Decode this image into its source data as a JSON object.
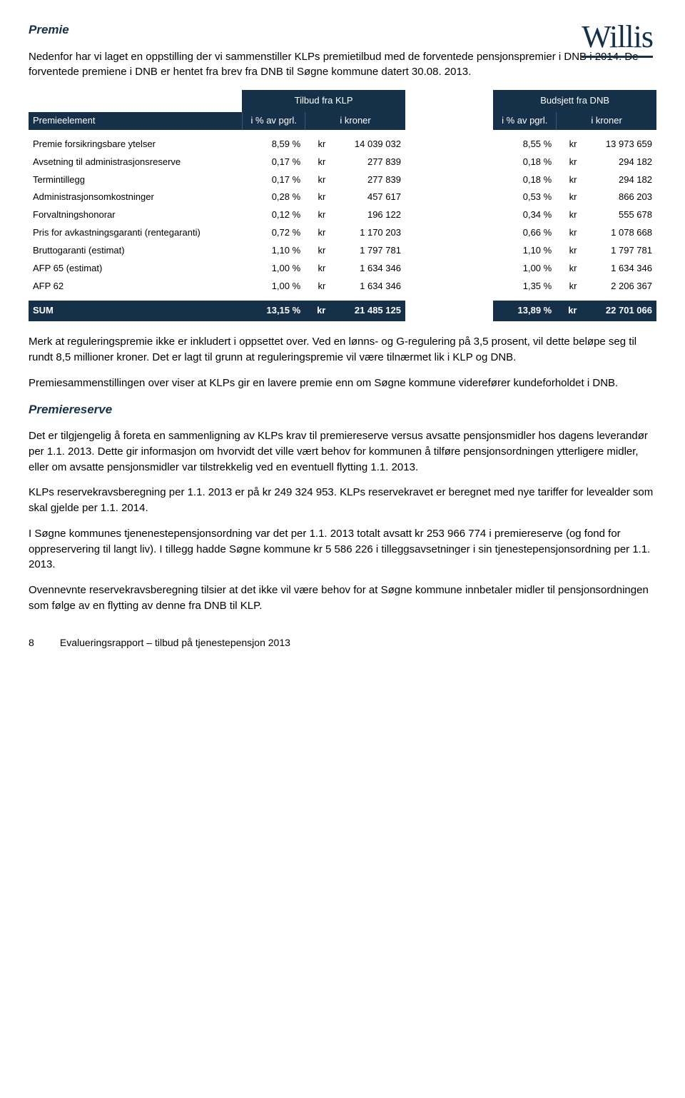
{
  "logo": "Willis",
  "section1_title": "Premie",
  "p1": "Nedenfor har vi laget en oppstilling der vi sammenstiller KLPs premietilbud med de forventede pensjonspremier i DNB i 2014. De forventede premiene i DNB er hentet fra brev fra DNB til Søgne kommune datert 30.08. 2013.",
  "table": {
    "group1": "Tilbud fra KLP",
    "group2": "Budsjett fra DNB",
    "col_label": "Premieelement",
    "col_pct": "i % av pgrl.",
    "col_kr": "i kroner",
    "rows": [
      {
        "label": "Premie forsikringsbare ytelser",
        "p1": "8,59 %",
        "a1": "14 039 032",
        "p2": "8,55 %",
        "a2": "13 973 659"
      },
      {
        "label": "Avsetning til administrasjonsreserve",
        "p1": "0,17 %",
        "a1": "277 839",
        "p2": "0,18 %",
        "a2": "294 182"
      },
      {
        "label": "Termintillegg",
        "p1": "0,17 %",
        "a1": "277 839",
        "p2": "0,18 %",
        "a2": "294 182"
      },
      {
        "label": "Administrasjonsomkostninger",
        "p1": "0,28 %",
        "a1": "457 617",
        "p2": "0,53 %",
        "a2": "866 203"
      },
      {
        "label": "Forvaltningshonorar",
        "p1": "0,12 %",
        "a1": "196 122",
        "p2": "0,34 %",
        "a2": "555 678"
      },
      {
        "label": "Pris for avkastningsgaranti (rentegaranti)",
        "p1": "0,72 %",
        "a1": "1 170 203",
        "p2": "0,66 %",
        "a2": "1 078 668"
      },
      {
        "label": "Bruttogaranti (estimat)",
        "p1": "1,10 %",
        "a1": "1 797 781",
        "p2": "1,10 %",
        "a2": "1 797 781"
      },
      {
        "label": "AFP 65 (estimat)",
        "p1": "1,00 %",
        "a1": "1 634 346",
        "p2": "1,00 %",
        "a2": "1 634 346"
      },
      {
        "label": "AFP 62",
        "p1": "1,00 %",
        "a1": "1 634 346",
        "p2": "1,35 %",
        "a2": "2 206 367"
      }
    ],
    "sum": {
      "label": "SUM",
      "p1": "13,15 %",
      "a1": "21 485 125",
      "p2": "13,89 %",
      "a2": "22 701 066"
    },
    "currency": "kr"
  },
  "p2": "Merk at reguleringspremie ikke er inkludert i oppsettet over. Ved en lønns- og G-regulering på 3,5 prosent, vil dette beløpe seg til rundt 8,5 millioner kroner. Det er lagt til grunn at reguleringspremie vil være tilnærmet lik i KLP og DNB.",
  "p3": "Premiesammenstillingen over viser at KLPs gir en lavere premie enn om Søgne kommune viderefører kundeforholdet i DNB.",
  "section2_title": "Premiereserve",
  "p4": "Det er tilgjengelig å foreta en sammenligning av KLPs krav til premiereserve versus avsatte pensjonsmidler hos dagens leverandør per 1.1. 2013. Dette gir informasjon om hvorvidt det ville vært behov for kommunen å tilføre pensjonsordningen ytterligere midler, eller om avsatte pensjonsmidler var tilstrekkelig ved en eventuell flytting 1.1. 2013.",
  "p5": "KLPs reservekravsberegning per 1.1. 2013 er på kr 249 324 953. KLPs reservekravet er beregnet med nye tariffer for levealder som skal gjelde per 1.1. 2014.",
  "p6": "I Søgne kommunes tjenenestepensjonsordning var det per 1.1. 2013 totalt avsatt kr 253 966 774 i premiereserve (og fond for oppreservering til langt liv). I tillegg hadde Søgne kommune kr 5 586 226 i tilleggsavsetninger i sin tjenestepensjonsordning per 1.1. 2013.",
  "p7": "Ovennevnte reservekravsberegning tilsier at det ikke vil være behov for at Søgne kommune innbetaler midler til pensjonsordningen som følge av en flytting av denne fra DNB til KLP.",
  "footer": {
    "page": "8",
    "text": "Evalueringsrapport – tilbud på tjenestepensjon 2013"
  }
}
